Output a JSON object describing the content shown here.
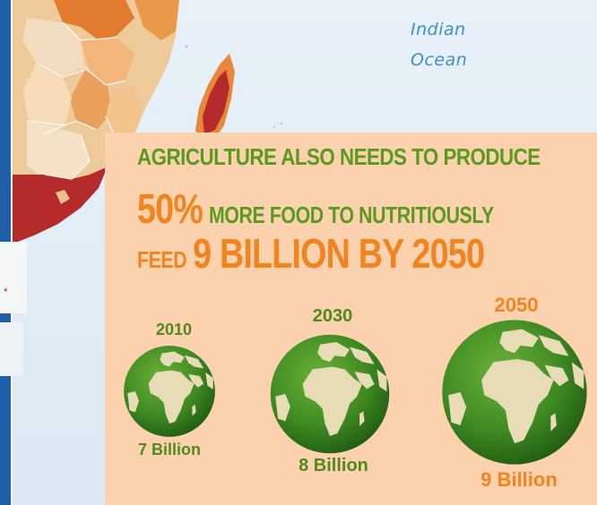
{
  "map": {
    "ocean_label_line1": "Indian",
    "ocean_label_line2": "Ocean"
  },
  "infographic": {
    "headline_line1": "AGRICULTURE ALSO NEEDS TO PRODUCE",
    "headline_percent": "50%",
    "headline_line2_rest": "MORE FOOD TO NUTRITIOUSLY",
    "headline_feed": "FEED",
    "headline_billion": "9 BILLION BY 2050",
    "colors": {
      "background": "#fbd2ad",
      "green": "#5c9a1f",
      "orange": "#f1841f"
    },
    "globes": [
      {
        "year": "2010",
        "population": "7 Billion",
        "population_color": "#4f8a1c",
        "icon": "globe-africa-icon"
      },
      {
        "year": "2030",
        "population": "8 Billion",
        "population_color": "#4f8a1c",
        "icon": "globe-africa-icon"
      },
      {
        "year": "2050",
        "population": "9 Billion",
        "population_color": "#f1841f",
        "year_color": "#f1841f",
        "icon": "globe-africa-icon"
      }
    ]
  }
}
